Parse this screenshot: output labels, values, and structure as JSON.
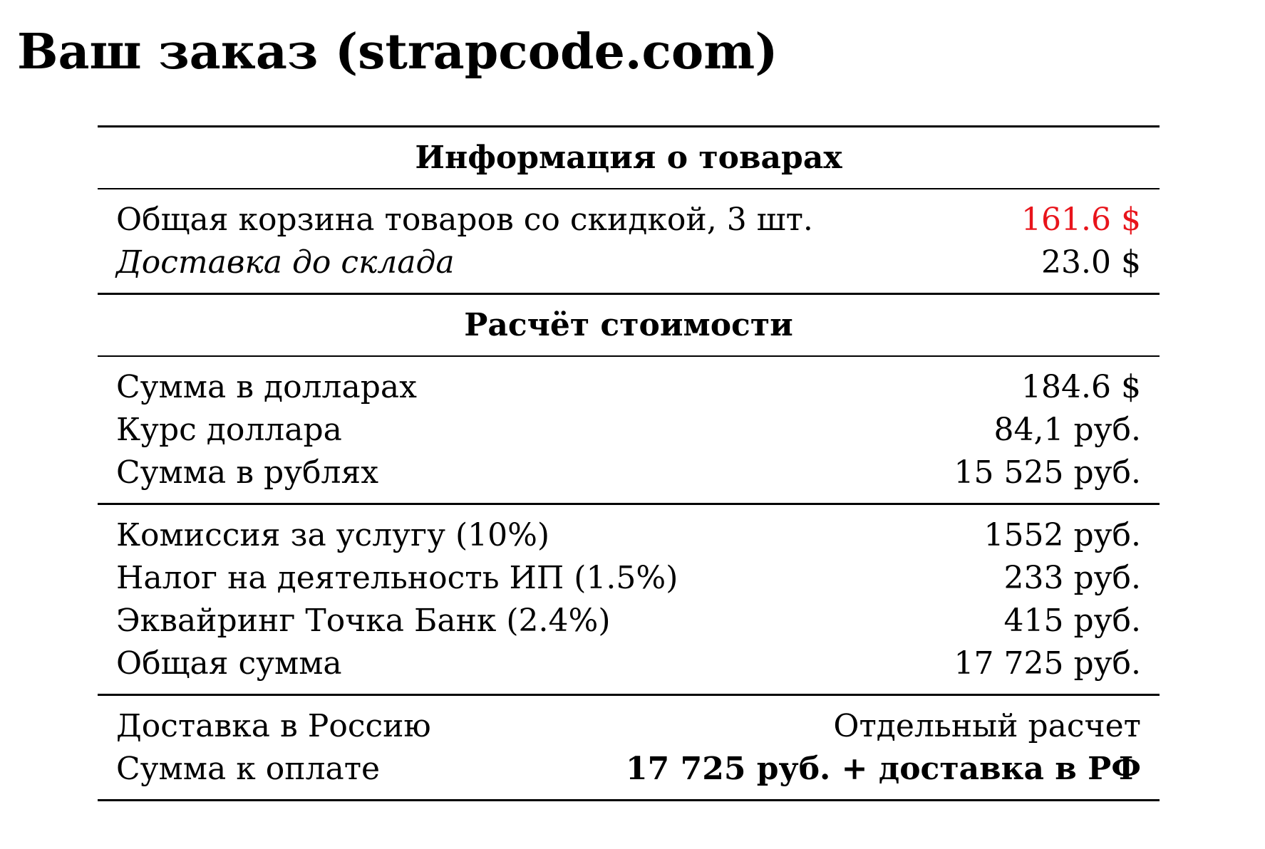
{
  "page": {
    "title": "Ваш заказ (strapcode.com)"
  },
  "colors": {
    "accent": "#e8141b",
    "text": "#000000",
    "background": "#ffffff"
  },
  "goods": {
    "header": "Информация о товарах",
    "rows": [
      {
        "label": "Общая корзина товаров со скидкой, 3 шт.",
        "value": "161.6 $"
      },
      {
        "label": "Доставка до склада",
        "value": "23.0 $"
      }
    ]
  },
  "calculation": {
    "header": "Расчёт стоимости",
    "conversion": [
      {
        "label": "Сумма в долларах",
        "value": "184.6 $"
      },
      {
        "label": "Курс доллара",
        "value": "84,1 руб."
      },
      {
        "label": "Сумма в рублях",
        "value": "15 525 руб."
      }
    ],
    "fees": [
      {
        "label": "Комиссия за услугу (10%)",
        "value": "1552 руб."
      },
      {
        "label": "Налог на деятельность ИП (1.5%)",
        "value": "233 руб."
      },
      {
        "label": "Эквайринг Точка Банк (2.4%)",
        "value": "415 руб."
      },
      {
        "label": "Общая сумма",
        "value": "17 725 руб."
      }
    ],
    "final": [
      {
        "label": "Доставка в Россию",
        "value": "Отдельный расчет"
      },
      {
        "label": "Сумма к оплате",
        "value": "17 725 руб. + доставка в РФ"
      }
    ]
  }
}
